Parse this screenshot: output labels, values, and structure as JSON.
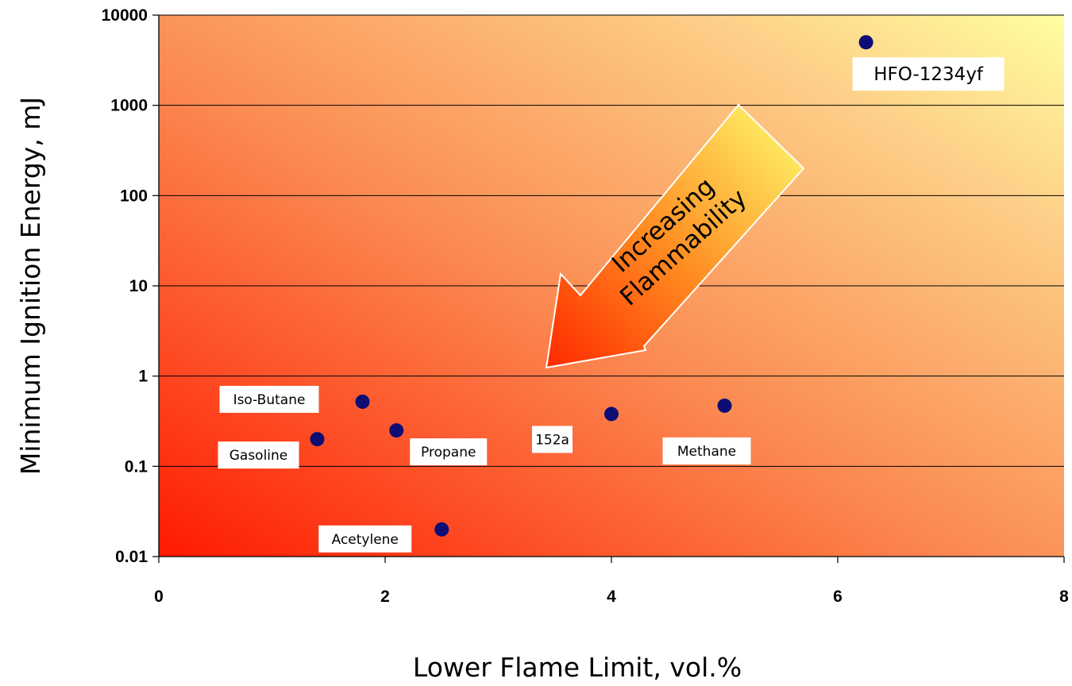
{
  "chart_data": {
    "type": "scatter",
    "xlabel": "Lower Flame Limit, vol.%",
    "ylabel": "Minimum Ignition Energy, mJ",
    "xlim": [
      0,
      8
    ],
    "ylim": [
      0.01,
      10000
    ],
    "yscale": "log",
    "x_ticks": [
      0,
      2,
      4,
      6,
      8
    ],
    "y_ticks": [
      0.01,
      0.1,
      1,
      10,
      100,
      1000,
      10000
    ],
    "x_tick_labels": [
      "0",
      "2",
      "4",
      "6",
      "8"
    ],
    "y_tick_labels": [
      "0.01",
      "0.1",
      "1",
      "10",
      "100",
      "1000",
      "10000"
    ],
    "grid": "horizontal",
    "marker_color": "#0d0d73",
    "points": [
      {
        "label": "Gasoline",
        "x": 1.4,
        "y": 0.2
      },
      {
        "label": "Iso-Butane",
        "x": 1.8,
        "y": 0.52
      },
      {
        "label": "Propane",
        "x": 2.1,
        "y": 0.25
      },
      {
        "label": "Acetylene",
        "x": 2.5,
        "y": 0.02
      },
      {
        "label": "152a",
        "x": 4.0,
        "y": 0.38
      },
      {
        "label": "Methane",
        "x": 5.0,
        "y": 0.47
      },
      {
        "label": "HFO-1234yf",
        "x": 6.25,
        "y": 5000
      }
    ],
    "annotation": {
      "lines": [
        "Increasing",
        "Flammability"
      ]
    }
  }
}
